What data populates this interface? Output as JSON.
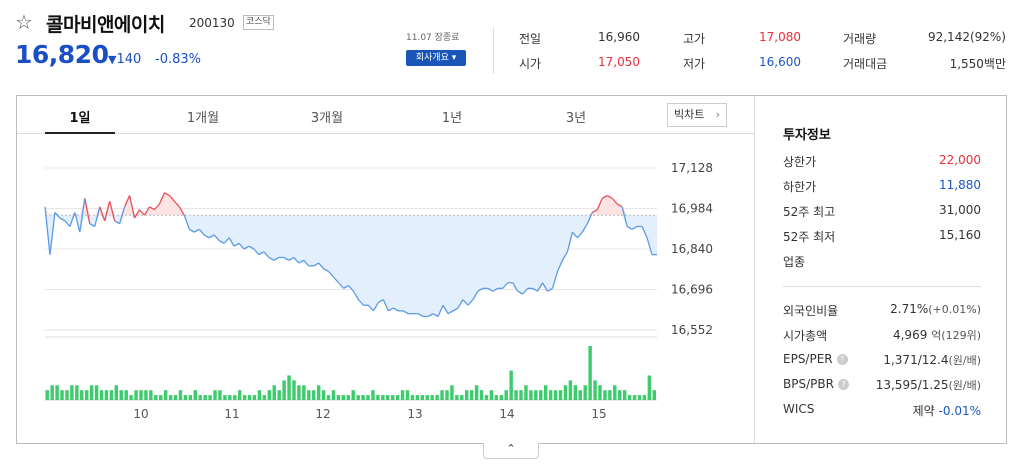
{
  "stock": {
    "name": "콜마비앤에이치",
    "code": "200130",
    "market": "코스닥",
    "price": "16,820",
    "change_arrow": "▼",
    "change": "140",
    "change_pct": "-0.83%",
    "date_label": "11.07 장종료",
    "company_button": "회사개요 ▾"
  },
  "quote": {
    "prev_close_label": "전일",
    "prev_close": "16,960",
    "open_label": "시가",
    "open": "17,050",
    "high_label": "고가",
    "high": "17,080",
    "low_label": "저가",
    "low": "16,600",
    "volume_label": "거래량",
    "volume": "92,142(92%)",
    "amount_label": "거래대금",
    "amount": "1,550백만"
  },
  "tabs": [
    "1일",
    "1개월",
    "3개월",
    "1년",
    "3년"
  ],
  "big_chart_label": "빅차트",
  "colors": {
    "price_blue": "#1a4fc4",
    "up_red": "#e8303a",
    "volume_green": "#3ecb6e",
    "area_fill": "#e3effd"
  },
  "chart_data": {
    "type": "line",
    "x_ticks": [
      "10",
      "11",
      "12",
      "13",
      "14",
      "15"
    ],
    "y_ticks": [
      "17,128",
      "16,984",
      "16,840",
      "16,696",
      "16,552"
    ],
    "ylim": [
      16552,
      17128
    ],
    "baseline": 16960,
    "price_series": [
      16990,
      16820,
      16970,
      16950,
      16940,
      16920,
      16970,
      16900,
      17020,
      16930,
      16920,
      16990,
      16940,
      17010,
      16940,
      16930,
      16990,
      17030,
      16950,
      16980,
      16960,
      16990,
      16980,
      17000,
      17040,
      17030,
      17010,
      16990,
      16960,
      16910,
      16900,
      16910,
      16890,
      16880,
      16890,
      16870,
      16860,
      16880,
      16850,
      16860,
      16840,
      16850,
      16840,
      16820,
      16830,
      16810,
      16800,
      16810,
      16810,
      16800,
      16810,
      16790,
      16800,
      16780,
      16780,
      16790,
      16770,
      16760,
      16740,
      16720,
      16700,
      16710,
      16690,
      16660,
      16640,
      16640,
      16620,
      16650,
      16660,
      16620,
      16630,
      16620,
      16620,
      16610,
      16610,
      16610,
      16600,
      16600,
      16610,
      16600,
      16640,
      16610,
      16620,
      16630,
      16660,
      16640,
      16660,
      16690,
      16700,
      16700,
      16690,
      16700,
      16700,
      16720,
      16720,
      16690,
      16680,
      16700,
      16700,
      16690,
      16720,
      16690,
      16700,
      16760,
      16800,
      16830,
      16900,
      16880,
      16900,
      16930,
      16970,
      16980,
      17020,
      17030,
      17020,
      17000,
      16990,
      16920,
      16910,
      16920,
      16920,
      16880,
      16820,
      16820
    ],
    "volume_series": [
      2,
      3,
      3,
      2,
      2,
      3,
      3,
      2,
      2,
      3,
      3,
      2,
      2,
      2,
      3,
      2,
      2,
      1,
      2,
      2,
      2,
      2,
      1,
      1,
      2,
      1,
      1,
      2,
      1,
      1,
      2,
      1,
      1,
      1,
      2,
      2,
      1,
      1,
      1,
      2,
      1,
      1,
      1,
      2,
      1,
      2,
      3,
      2,
      4,
      5,
      4,
      3,
      3,
      2,
      2,
      3,
      2,
      1,
      2,
      1,
      1,
      1,
      2,
      1,
      1,
      1,
      2,
      1,
      1,
      1,
      1,
      1,
      2,
      2,
      1,
      1,
      1,
      1,
      1,
      1,
      2,
      2,
      3,
      1,
      1,
      2,
      2,
      3,
      2,
      1,
      2,
      1,
      1,
      2,
      6,
      2,
      2,
      3,
      2,
      2,
      2,
      3,
      2,
      2,
      2,
      3,
      4,
      3,
      2,
      3,
      11,
      4,
      3,
      2,
      2,
      3,
      2,
      2,
      1,
      1,
      1,
      1,
      5,
      2
    ]
  },
  "info": {
    "title": "투자정보",
    "upper_limit_label": "상한가",
    "upper_limit": "22,000",
    "lower_limit_label": "하한가",
    "lower_limit": "11,880",
    "w52_high_label": "52주 최고",
    "w52_high": "31,000",
    "w52_low_label": "52주 최저",
    "w52_low": "15,160",
    "industry_label": "업종",
    "foreign_label": "외국인비율",
    "foreign_val": "2.71%",
    "foreign_chg": "(+0.01%)",
    "mcap_label": "시가총액",
    "mcap_val": "4,969",
    "mcap_unit": "억(129위)",
    "eps_label": "EPS/PER",
    "eps_val": "1,371/12.4",
    "eps_unit": "(원/배)",
    "bps_label": "BPS/PBR",
    "bps_val": "13,595/1.25",
    "bps_unit": "(원/배)",
    "wics_label": "WICS",
    "wics_val": "제약",
    "wics_chg": "-0.01%",
    "help_icon": "?"
  },
  "collapse_glyph": "⌃"
}
